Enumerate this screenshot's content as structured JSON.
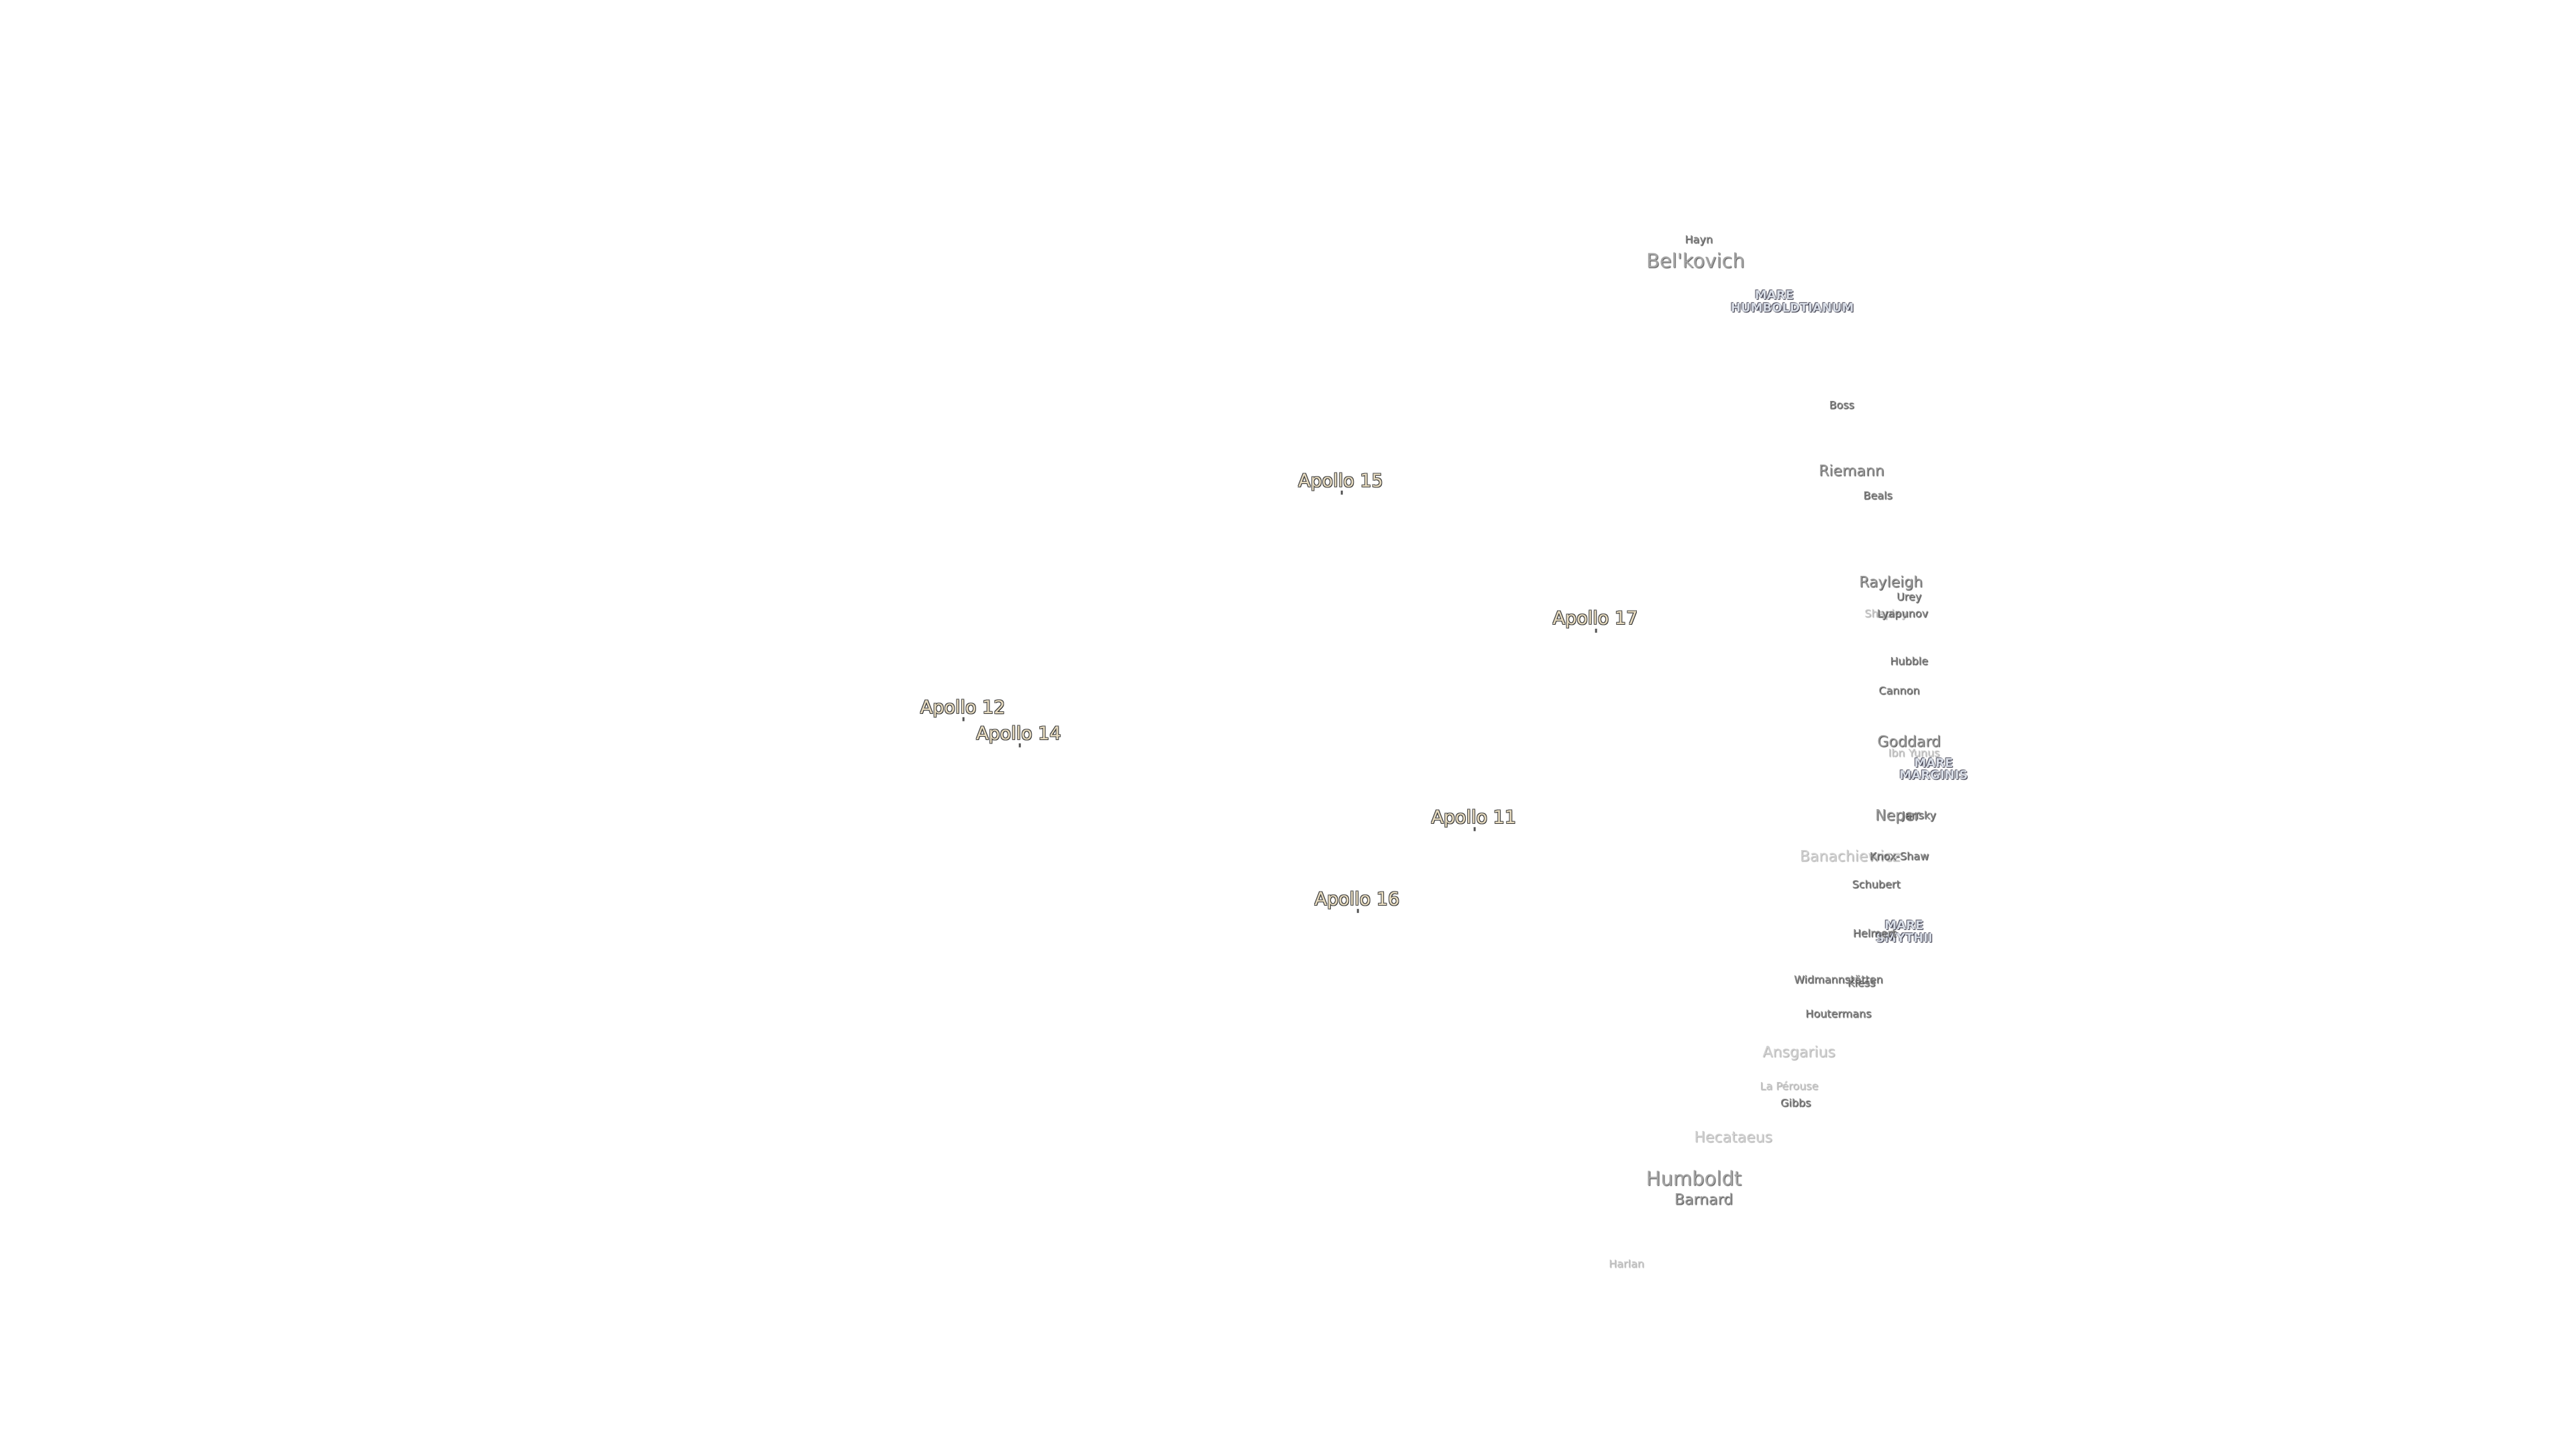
{
  "labels": [
    {
      "text": "Hayn"
    },
    {
      "text": "Bel'kovich"
    },
    {
      "text": "MARE HUMBOLDTIANUM"
    },
    {
      "text": "Boss"
    },
    {
      "text": "Riemann"
    },
    {
      "text": "Apollo 15"
    },
    {
      "text": "Beals"
    },
    {
      "text": "Rayleigh"
    },
    {
      "text": "Urey"
    },
    {
      "text": "Shapley"
    },
    {
      "text": "Lyapunov"
    },
    {
      "text": "Apollo 17"
    },
    {
      "text": "Hubble"
    },
    {
      "text": "Cannon"
    },
    {
      "text": "Apollo 12"
    },
    {
      "text": "Apollo 14"
    },
    {
      "text": "Goddard"
    },
    {
      "text": "Ibn Yunus"
    },
    {
      "text": "MARE MARGINIS"
    },
    {
      "text": "Neper"
    },
    {
      "text": "Jansky"
    },
    {
      "text": "Apollo 11"
    },
    {
      "text": "Banachiewicz"
    },
    {
      "text": "Knox-Shaw"
    },
    {
      "text": "Schubert"
    },
    {
      "text": "Apollo 16"
    },
    {
      "text": "MARE SMYTHII"
    },
    {
      "text": "Helmert"
    },
    {
      "text": "Widmannstätten"
    },
    {
      "text": "Kiess"
    },
    {
      "text": "Houtermans"
    },
    {
      "text": "Ansgarius"
    },
    {
      "text": "La Pérouse"
    },
    {
      "text": "Gibbs"
    },
    {
      "text": "Hecataeus"
    },
    {
      "text": "Humboldt"
    },
    {
      "text": "Barnard"
    },
    {
      "text": "Harlan"
    }
  ]
}
